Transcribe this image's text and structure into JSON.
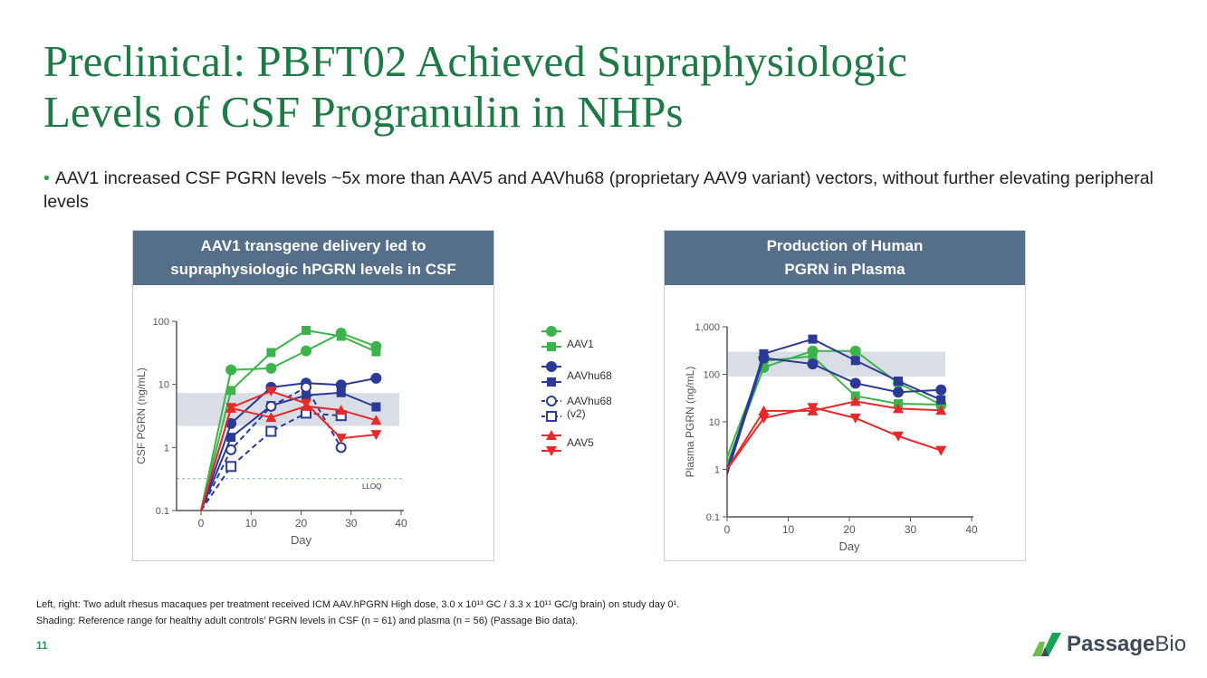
{
  "title_line1": "Preclinical: PBFT02 Achieved Supraphysiologic",
  "title_line2": "Levels of CSF Progranulin in NHPs",
  "bullet": "AAV1 increased CSF PGRN levels ~5x more than AAV5 and AAVhu68 (proprietary AAV9 variant) vectors, without further elevating peripheral levels",
  "left_panel": {
    "header_line1": "AAV1 transgene delivery led to",
    "header_line2": "supraphysiologic hPGRN levels in CSF"
  },
  "right_panel": {
    "header_line1": "Production of Human",
    "header_line2": "PGRN in Plasma"
  },
  "legend": {
    "aav1": "AAV1",
    "aavhu68": "AAVhu68",
    "aavhu68_v2_line1": "AAVhu68",
    "aavhu68_v2_line2": "(v2)",
    "aav5": "AAV5"
  },
  "footnote_line1": "Left, right: Two adult rhesus macaques per treatment received ICM AAV.hPGRN High dose, 3.0 x 10¹³ GC / 3.3 x 10¹¹ GC/g brain) on study day 0¹.",
  "footnote_line2": "Shading: Reference range for healthy adult controls’ PGRN levels in CSF (n = 61) and plasma (n = 56) (Passage Bio data).",
  "page_number": "11",
  "logo": {
    "name1": "Passage",
    "name2": "Bio"
  },
  "colors": {
    "green": "#3cb44b",
    "blue": "#2b3a96",
    "red": "#e8282b",
    "shade": "#d9dee6"
  },
  "chart_data": [
    {
      "type": "line",
      "ylabel": "CSF PGRN (ng/mL)",
      "xlabel": "Day",
      "xlim": [
        -5,
        40
      ],
      "ylim": [
        0.1,
        100
      ],
      "yscale": "log",
      "xticks": [
        "0",
        "10",
        "20",
        "30",
        "40"
      ],
      "yticks": [
        "0.1",
        "1",
        "10",
        "100"
      ],
      "ytickvals": [
        0.1,
        1,
        10,
        100
      ],
      "shading": [
        2.2,
        7.3
      ],
      "lloq": {
        "value": 0.32,
        "label": "LLOQ"
      },
      "series": [
        {
          "name": "AAV1",
          "color": "green",
          "marker": "circle",
          "x": [
            0,
            6,
            14,
            21,
            28,
            35
          ],
          "values": [
            0.1,
            17,
            18,
            34,
            65,
            40
          ]
        },
        {
          "name": "AAV1",
          "color": "green",
          "marker": "square",
          "x": [
            0,
            6,
            14,
            21,
            28,
            35
          ],
          "values": [
            0.1,
            8,
            32,
            72,
            58,
            33
          ]
        },
        {
          "name": "AAVhu68",
          "color": "blue",
          "marker": "circle",
          "x": [
            0,
            6,
            14,
            21,
            28,
            35
          ],
          "values": [
            0.1,
            2.4,
            9,
            10.5,
            9.8,
            12.5
          ]
        },
        {
          "name": "AAVhu68",
          "color": "blue",
          "marker": "square",
          "x": [
            0,
            6,
            14,
            21,
            28,
            35
          ],
          "values": [
            0.1,
            1.45,
            4.6,
            6.7,
            7.4,
            4.4
          ]
        },
        {
          "name": "AAVhu68 (v2)",
          "color": "blue",
          "marker": "open-circle",
          "dashed": true,
          "x": [
            0,
            6,
            14,
            21,
            28
          ],
          "values": [
            0.1,
            0.92,
            4.5,
            9,
            1.0
          ]
        },
        {
          "name": "AAVhu68 (v2)",
          "color": "blue",
          "marker": "open-square",
          "dashed": true,
          "x": [
            0,
            6,
            14,
            21,
            28
          ],
          "values": [
            0.1,
            0.5,
            1.8,
            3.5,
            3.2
          ]
        },
        {
          "name": "AAV5",
          "color": "red",
          "marker": "triangle-up",
          "x": [
            0,
            6,
            14,
            21,
            28,
            35
          ],
          "values": [
            0.1,
            4.2,
            3.0,
            4.5,
            3.9,
            2.7
          ]
        },
        {
          "name": "AAV5",
          "color": "red",
          "marker": "triangle-down",
          "x": [
            0,
            6,
            14,
            21,
            28,
            35
          ],
          "values": [
            0.1,
            4.3,
            7.8,
            5.0,
            1.4,
            1.6
          ]
        }
      ]
    },
    {
      "type": "line",
      "ylabel": "Plasma PGRN (ng/mL)",
      "xlabel": "Day",
      "xlim": [
        0,
        40
      ],
      "ylim": [
        0.1,
        1000
      ],
      "yscale": "log",
      "xticks": [
        "0",
        "10",
        "20",
        "30",
        "40"
      ],
      "yticks": [
        "0.1",
        "1",
        "10",
        "100",
        "1,000"
      ],
      "ytickvals": [
        0.1,
        1,
        10,
        100,
        1000
      ],
      "shading": [
        90,
        300
      ],
      "series": [
        {
          "name": "AAV1",
          "color": "green",
          "marker": "circle",
          "x": [
            0,
            6,
            14,
            21,
            28,
            35
          ],
          "values": [
            1.3,
            140,
            310,
            310,
            65,
            23
          ]
        },
        {
          "name": "AAV1",
          "color": "green",
          "marker": "square",
          "x": [
            0,
            6,
            14,
            21,
            28,
            35
          ],
          "values": [
            1.8,
            190,
            240,
            35,
            24,
            23
          ]
        },
        {
          "name": "AAVhu68",
          "color": "blue",
          "marker": "circle",
          "x": [
            0,
            6,
            14,
            21,
            28,
            35
          ],
          "values": [
            0.8,
            220,
            165,
            65,
            42,
            47
          ]
        },
        {
          "name": "AAVhu68",
          "color": "blue",
          "marker": "square",
          "x": [
            0,
            6,
            14,
            21,
            28,
            35
          ],
          "values": [
            1.0,
            270,
            550,
            195,
            72,
            29
          ]
        },
        {
          "name": "AAV5",
          "color": "red",
          "marker": "triangle-up",
          "x": [
            0,
            6,
            14,
            21,
            28,
            35
          ],
          "values": [
            1.0,
            17,
            17,
            27,
            19,
            17.5
          ]
        },
        {
          "name": "AAV5",
          "color": "red",
          "marker": "triangle-down",
          "x": [
            0,
            6,
            14,
            21,
            28,
            35
          ],
          "values": [
            1.0,
            12,
            20,
            12,
            5,
            2.5
          ]
        }
      ]
    }
  ]
}
